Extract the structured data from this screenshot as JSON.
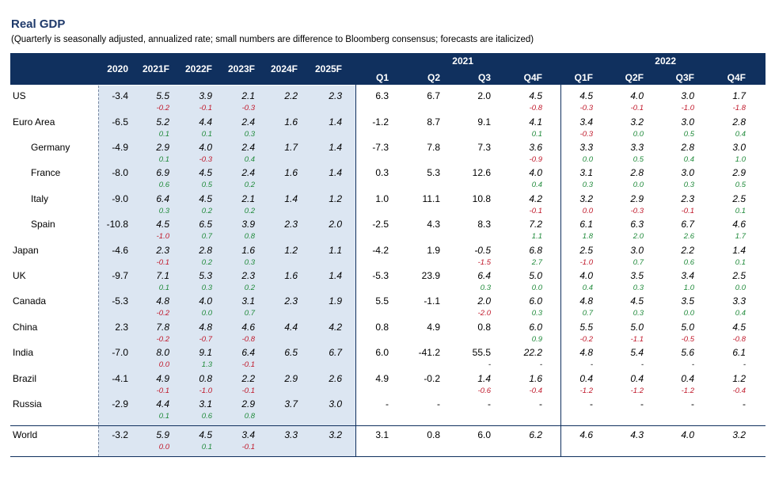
{
  "title": "Real GDP",
  "subtitle": "(Quarterly is seasonally adjusted, annualized rate; small numbers are difference to Bloomberg consensus; forecasts are italicized)",
  "colors": {
    "header_bg": "#10305e",
    "title": "#1f3a6b",
    "shade": "#dce6f2",
    "negative": "#c0182a",
    "positive": "#1f8a3a"
  },
  "headers": {
    "annual": [
      "2020",
      "2021F",
      "2022F",
      "2023F",
      "2024F",
      "2025F"
    ],
    "year_2021": "2021",
    "year_2022": "2022",
    "quarters_2021": [
      "Q1",
      "Q2",
      "Q3",
      "Q4F"
    ],
    "quarters_2022": [
      "Q1F",
      "Q2F",
      "Q3F",
      "Q4F"
    ]
  },
  "rows": [
    {
      "country": "US",
      "indent": false,
      "values": [
        "-3.4",
        "5.5",
        "3.9",
        "2.1",
        "2.2",
        "2.3",
        "6.3",
        "6.7",
        "2.0",
        "4.5",
        "4.5",
        "4.0",
        "3.0",
        "1.7"
      ],
      "diffs": [
        "",
        "-0.2",
        "-0.1",
        "-0.3",
        "",
        "",
        "",
        "",
        "",
        "-0.8",
        "-0.3",
        "-0.1",
        "-1.0",
        "-1.8"
      ]
    },
    {
      "country": "Euro Area",
      "indent": false,
      "values": [
        "-6.5",
        "5.2",
        "4.4",
        "2.4",
        "1.6",
        "1.4",
        "-1.2",
        "8.7",
        "9.1",
        "4.1",
        "3.4",
        "3.2",
        "3.0",
        "2.8"
      ],
      "diffs": [
        "",
        "0.1",
        "0.1",
        "0.3",
        "",
        "",
        "",
        "",
        "",
        "0.1",
        "-0.3",
        "0.0",
        "0.5",
        "0.4"
      ]
    },
    {
      "country": "Germany",
      "indent": true,
      "values": [
        "-4.9",
        "2.9",
        "4.0",
        "2.4",
        "1.7",
        "1.4",
        "-7.3",
        "7.8",
        "7.3",
        "3.6",
        "3.3",
        "3.3",
        "2.8",
        "3.0"
      ],
      "diffs": [
        "",
        "0.1",
        "-0.3",
        "0.4",
        "",
        "",
        "",
        "",
        "",
        "-0.9",
        "0.0",
        "0.5",
        "0.4",
        "1.0"
      ]
    },
    {
      "country": "France",
      "indent": true,
      "values": [
        "-8.0",
        "6.9",
        "4.5",
        "2.4",
        "1.6",
        "1.4",
        "0.3",
        "5.3",
        "12.6",
        "4.0",
        "3.1",
        "2.8",
        "3.0",
        "2.9"
      ],
      "diffs": [
        "",
        "0.6",
        "0.5",
        "0.2",
        "",
        "",
        "",
        "",
        "",
        "0.4",
        "0.3",
        "0.0",
        "0.3",
        "0.5"
      ]
    },
    {
      "country": "Italy",
      "indent": true,
      "values": [
        "-9.0",
        "6.4",
        "4.5",
        "2.1",
        "1.4",
        "1.2",
        "1.0",
        "11.1",
        "10.8",
        "4.2",
        "3.2",
        "2.9",
        "2.3",
        "2.5"
      ],
      "diffs": [
        "",
        "0.3",
        "0.2",
        "0.2",
        "",
        "",
        "",
        "",
        "",
        "-0.1",
        "0.0",
        "-0.3",
        "-0.1",
        "0.1"
      ]
    },
    {
      "country": "Spain",
      "indent": true,
      "values": [
        "-10.8",
        "4.5",
        "6.5",
        "3.9",
        "2.3",
        "2.0",
        "-2.5",
        "4.3",
        "8.3",
        "7.2",
        "6.1",
        "6.3",
        "6.7",
        "4.6"
      ],
      "diffs": [
        "",
        "-1.0",
        "0.7",
        "0.8",
        "",
        "",
        "",
        "",
        "",
        "1.1",
        "1.8",
        "2.0",
        "2.6",
        "1.7"
      ]
    },
    {
      "country": "Japan",
      "indent": false,
      "values": [
        "-4.6",
        "2.3",
        "2.8",
        "1.6",
        "1.2",
        "1.1",
        "-4.2",
        "1.9",
        "-0.5",
        "6.8",
        "2.5",
        "3.0",
        "2.2",
        "1.4"
      ],
      "diffs": [
        "",
        "-0.1",
        "0.2",
        "0.3",
        "",
        "",
        "",
        "",
        "-1.5",
        "2.7",
        "-1.0",
        "0.7",
        "0.6",
        "0.1"
      ]
    },
    {
      "country": "UK",
      "indent": false,
      "values": [
        "-9.7",
        "7.1",
        "5.3",
        "2.3",
        "1.6",
        "1.4",
        "-5.3",
        "23.9",
        "6.4",
        "5.0",
        "4.0",
        "3.5",
        "3.4",
        "2.5"
      ],
      "diffs": [
        "",
        "0.1",
        "0.3",
        "0.2",
        "",
        "",
        "",
        "",
        "0.3",
        "0.0",
        "0.4",
        "0.3",
        "1.0",
        "0.0"
      ]
    },
    {
      "country": "Canada",
      "indent": false,
      "values": [
        "-5.3",
        "4.8",
        "4.0",
        "3.1",
        "2.3",
        "1.9",
        "5.5",
        "-1.1",
        "2.0",
        "6.0",
        "4.8",
        "4.5",
        "3.5",
        "3.3"
      ],
      "diffs": [
        "",
        "-0.2",
        "0.0",
        "0.7",
        "",
        "",
        "",
        "",
        "-2.0",
        "0.3",
        "0.7",
        "0.3",
        "0.0",
        "0.4"
      ]
    },
    {
      "country": "China",
      "indent": false,
      "values": [
        "2.3",
        "7.8",
        "4.8",
        "4.6",
        "4.4",
        "4.2",
        "0.8",
        "4.9",
        "0.8",
        "6.0",
        "5.5",
        "5.0",
        "5.0",
        "4.5"
      ],
      "diffs": [
        "",
        "-0.2",
        "-0.7",
        "-0.8",
        "",
        "",
        "",
        "",
        "",
        "0.9",
        "-0.2",
        "-1.1",
        "-0.5",
        "-0.8"
      ]
    },
    {
      "country": "India",
      "indent": false,
      "values": [
        "-7.0",
        "8.0",
        "9.1",
        "6.4",
        "6.5",
        "6.7",
        "6.0",
        "-41.2",
        "55.5",
        "22.2",
        "4.8",
        "5.4",
        "5.6",
        "6.1"
      ],
      "diffs": [
        "",
        "0.0",
        "1.3",
        "-0.1",
        "",
        "",
        "",
        "",
        "-",
        "-",
        "-",
        "-",
        "-",
        "-"
      ]
    },
    {
      "country": "Brazil",
      "indent": false,
      "values": [
        "-4.1",
        "4.9",
        "0.8",
        "2.2",
        "2.9",
        "2.6",
        "4.9",
        "-0.2",
        "1.4",
        "1.6",
        "0.4",
        "0.4",
        "0.4",
        "1.2"
      ],
      "diffs": [
        "",
        "-0.1",
        "-1.0",
        "-0.1",
        "",
        "",
        "",
        "",
        "-0.6",
        "-0.4",
        "-1.2",
        "-1.2",
        "-1.2",
        "-0.4"
      ]
    },
    {
      "country": "Russia",
      "indent": false,
      "values": [
        "-2.9",
        "4.4",
        "3.1",
        "2.9",
        "3.7",
        "3.0",
        "-",
        "-",
        "-",
        "-",
        "-",
        "-",
        "-",
        "-"
      ],
      "diffs": [
        "",
        "0.1",
        "0.6",
        "0.8",
        "",
        "",
        "",
        "",
        "",
        "",
        "",
        "",
        "",
        ""
      ]
    },
    {
      "country": "World",
      "indent": false,
      "values": [
        "-3.2",
        "5.9",
        "4.5",
        "3.4",
        "3.3",
        "3.2",
        "3.1",
        "0.8",
        "6.0",
        "6.2",
        "4.6",
        "4.3",
        "4.0",
        "3.2"
      ],
      "diffs": [
        "",
        "0.0",
        "0.1",
        "-0.1",
        "",
        "",
        "",
        "",
        "",
        "",
        "",
        "",
        "",
        ""
      ]
    }
  ]
}
